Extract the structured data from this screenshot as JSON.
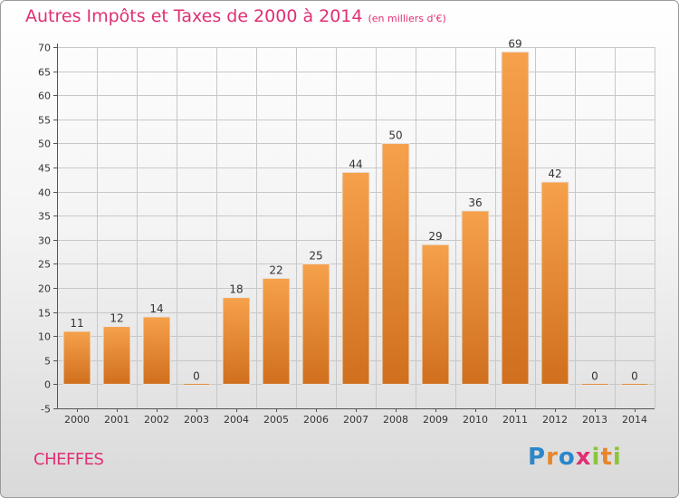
{
  "header": {
    "title": "Autres Impôts et Taxes de 2000 à 2014",
    "unit": "(en milliers d'€)"
  },
  "footer": {
    "commune": "CHEFFES",
    "logo": "Proxiti"
  },
  "colors": {
    "title": "#e02f75",
    "bar_light": "#f6a14c",
    "bar_dark": "#d06f1d",
    "grid": "#c8c8c8"
  },
  "chart_data": {
    "type": "bar",
    "title": "Autres Impôts et Taxes de 2000 à 2014",
    "subtitle": "(en milliers d'€)",
    "xlabel": "",
    "ylabel": "",
    "categories": [
      "2000",
      "2001",
      "2002",
      "2003",
      "2004",
      "2005",
      "2006",
      "2007",
      "2008",
      "2009",
      "2010",
      "2011",
      "2012",
      "2013",
      "2014"
    ],
    "values": [
      11,
      12,
      14,
      0,
      18,
      22,
      25,
      44,
      50,
      29,
      36,
      69,
      42,
      0,
      0
    ],
    "ylim": [
      -5,
      70
    ],
    "yticks": [
      -5,
      0,
      5,
      10,
      15,
      20,
      25,
      30,
      35,
      40,
      45,
      50,
      55,
      60,
      65,
      70
    ],
    "grid": true,
    "data_labels": true
  }
}
